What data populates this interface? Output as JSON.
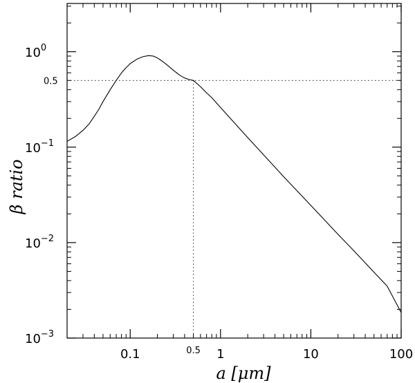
{
  "chart_data": {
    "type": "line",
    "xlabel": "a  [μm]",
    "ylabel": "β  ratio",
    "x_scale": "log",
    "y_scale": "log",
    "xlim": [
      0.02,
      100
    ],
    "ylim": [
      0.001,
      3.2
    ],
    "grid": false,
    "x_ticks": [
      {
        "value": 0.1,
        "label": "0.1"
      },
      {
        "value": 1,
        "label": "1"
      },
      {
        "value": 10,
        "label": "10"
      },
      {
        "value": 100,
        "label": "100"
      }
    ],
    "x_extra_ticks": [
      {
        "value": 0.5,
        "label": "0.5"
      }
    ],
    "y_ticks": [
      {
        "value": 1,
        "base": "10",
        "exp": "0"
      },
      {
        "value": 0.1,
        "base": "10",
        "exp": "−1"
      },
      {
        "value": 0.01,
        "base": "10",
        "exp": "−2"
      },
      {
        "value": 0.001,
        "base": "10",
        "exp": "−3"
      }
    ],
    "y_extra_ticks": [
      {
        "value": 0.5,
        "label": "0.5"
      }
    ],
    "reference_lines": [
      {
        "axis": "y",
        "value": 0.5,
        "style": "dotted"
      },
      {
        "axis": "x",
        "value": 0.5,
        "style": "dotted"
      }
    ],
    "series": [
      {
        "x": [
          0.02,
          0.025,
          0.03,
          0.035,
          0.04,
          0.045,
          0.05,
          0.06,
          0.07,
          0.08,
          0.09,
          0.1,
          0.12,
          0.14,
          0.16,
          0.18,
          0.2,
          0.22,
          0.25,
          0.3,
          0.35,
          0.4,
          0.45,
          0.5,
          0.6,
          0.7,
          0.8,
          1,
          1.5,
          2,
          3,
          5,
          7,
          10,
          20,
          30,
          50,
          70,
          100
        ],
        "y": [
          0.115,
          0.13,
          0.15,
          0.175,
          0.21,
          0.25,
          0.3,
          0.4,
          0.5,
          0.6,
          0.68,
          0.75,
          0.84,
          0.89,
          0.91,
          0.9,
          0.86,
          0.81,
          0.74,
          0.64,
          0.57,
          0.53,
          0.51,
          0.5,
          0.43,
          0.37,
          0.33,
          0.26,
          0.17,
          0.126,
          0.083,
          0.049,
          0.035,
          0.0245,
          0.0122,
          0.0082,
          0.0049,
          0.0035,
          0.00185
        ]
      }
    ]
  }
}
